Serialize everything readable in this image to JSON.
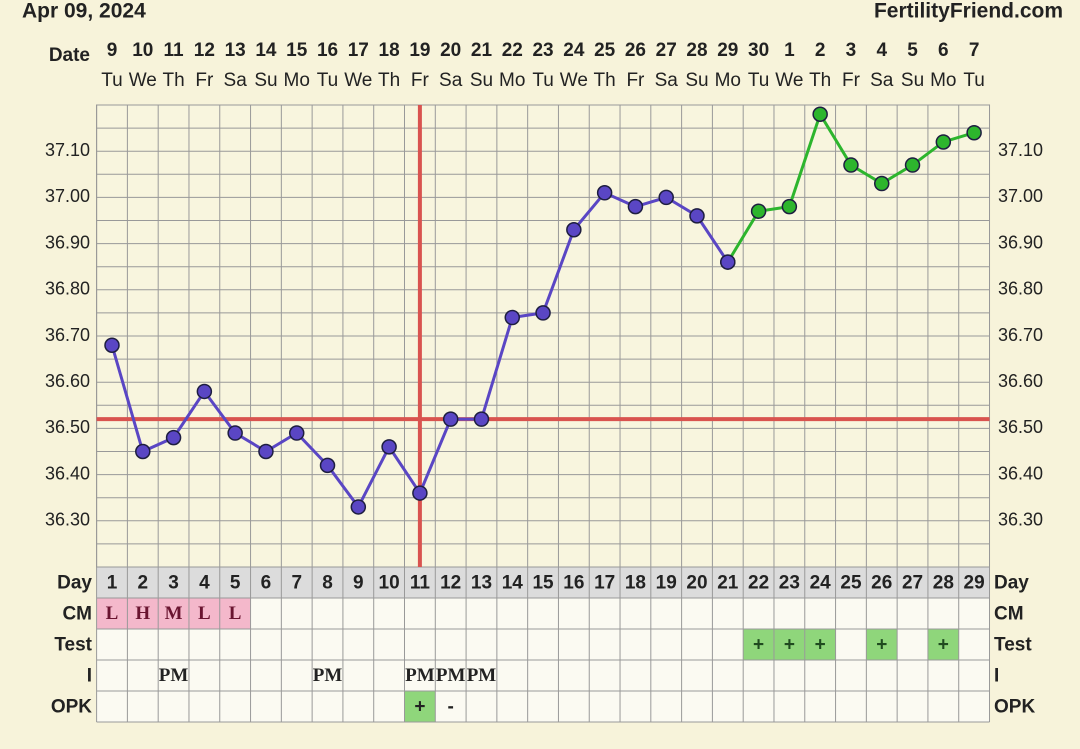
{
  "header": {
    "date": "Apr 09, 2024",
    "site": "FertilityFriend.com"
  },
  "chart_data": {
    "type": "line",
    "dates_label": "Date",
    "dates": [
      "9",
      "10",
      "11",
      "12",
      "13",
      "14",
      "15",
      "16",
      "17",
      "18",
      "19",
      "20",
      "21",
      "22",
      "23",
      "24",
      "25",
      "26",
      "27",
      "28",
      "29",
      "30",
      "1",
      "2",
      "3",
      "4",
      "5",
      "6",
      "7"
    ],
    "weekdays": [
      "Tu",
      "We",
      "Th",
      "Fr",
      "Sa",
      "Su",
      "Mo",
      "Tu",
      "We",
      "Th",
      "Fr",
      "Sa",
      "Su",
      "Mo",
      "Tu",
      "We",
      "Th",
      "Fr",
      "Sa",
      "Su",
      "Mo",
      "Tu",
      "We",
      "Th",
      "Fr",
      "Sa",
      "Su",
      "Mo",
      "Tu"
    ],
    "ylim": [
      36.2,
      37.2
    ],
    "yticks": [
      {
        "value": 36.3,
        "label": "36.30"
      },
      {
        "value": 36.4,
        "label": "36.40"
      },
      {
        "value": 36.5,
        "label": "36.50"
      },
      {
        "value": 36.6,
        "label": "36.60"
      },
      {
        "value": 36.7,
        "label": "36.70"
      },
      {
        "value": 36.8,
        "label": "36.80"
      },
      {
        "value": 36.9,
        "label": "36.90"
      },
      {
        "value": 37.0,
        "label": "37.00"
      },
      {
        "value": 37.1,
        "label": "37.10"
      }
    ],
    "minor_yticks": [
      36.2,
      36.25,
      36.35,
      36.45,
      36.55,
      36.65,
      36.75,
      36.85,
      36.95,
      37.05,
      37.15,
      37.2
    ],
    "grid": true,
    "series": [
      {
        "color": "#5a46c4",
        "values": [
          36.68,
          36.45,
          36.48,
          36.58,
          36.49,
          36.45,
          36.49,
          36.42,
          36.33,
          36.46,
          36.36,
          36.52,
          36.52,
          36.74,
          36.75,
          36.93,
          37.01,
          36.98,
          37.0,
          36.96,
          36.86,
          null,
          null,
          null,
          null,
          null,
          null,
          null,
          null
        ]
      },
      {
        "color": "#2db52d",
        "values": [
          null,
          null,
          null,
          null,
          null,
          null,
          null,
          null,
          null,
          null,
          null,
          null,
          null,
          null,
          null,
          null,
          null,
          null,
          null,
          null,
          36.86,
          36.97,
          36.98,
          37.18,
          37.07,
          37.03,
          37.07,
          37.12,
          37.14
        ]
      }
    ],
    "coverline": 36.52,
    "ovulation_day": 11,
    "marker_line_color": "#d9534f",
    "table": {
      "row_labels": [
        "Day",
        "CM",
        "Test",
        "I",
        "OPK"
      ],
      "cycle_days": [
        1,
        2,
        3,
        4,
        5,
        6,
        7,
        8,
        9,
        10,
        11,
        12,
        13,
        14,
        15,
        16,
        17,
        18,
        19,
        20,
        21,
        22,
        23,
        24,
        25,
        26,
        27,
        28,
        29
      ],
      "cm": [
        "L",
        "H",
        "M",
        "L",
        "L",
        null,
        null,
        null,
        null,
        null,
        null,
        null,
        null,
        null,
        null,
        null,
        null,
        null,
        null,
        null,
        null,
        null,
        null,
        null,
        null,
        null,
        null,
        null,
        null
      ],
      "cm_color": "#f4b8cb",
      "test": [
        null,
        null,
        null,
        null,
        null,
        null,
        null,
        null,
        null,
        null,
        null,
        null,
        null,
        null,
        null,
        null,
        null,
        null,
        null,
        null,
        null,
        "+",
        "+",
        "+",
        null,
        "+",
        null,
        "+",
        null
      ],
      "positive_color": "#8fd67b",
      "intercourse": [
        null,
        null,
        "PM",
        null,
        null,
        null,
        null,
        "PM",
        null,
        null,
        "PM",
        "PM",
        "PM",
        null,
        null,
        null,
        null,
        null,
        null,
        null,
        null,
        null,
        null,
        null,
        null,
        null,
        null,
        null,
        null
      ],
      "opk": [
        null,
        null,
        null,
        null,
        null,
        null,
        null,
        null,
        null,
        null,
        "+",
        "-",
        null,
        null,
        null,
        null,
        null,
        null,
        null,
        null,
        null,
        null,
        null,
        null,
        null,
        null,
        null,
        null,
        null
      ],
      "opk_highlight": [
        11
      ]
    }
  }
}
